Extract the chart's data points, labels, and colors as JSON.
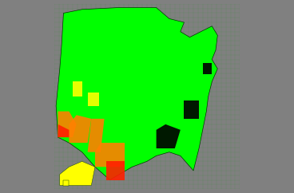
{
  "background_color": "#808080",
  "fig_width": 3.68,
  "fig_height": 2.42,
  "dpi": 100,
  "map_colors": {
    "high_white": "#00FF00",
    "med_high_white": "#80FF00",
    "medium_white": "#FFFF00",
    "low_white": "#FF8000",
    "very_low_white": "#FF4000",
    "black_majority": "#000000",
    "light_green": "#40FF00"
  },
  "alaska_color": "#FFFF00",
  "hawaii_color": "#FFFF00",
  "grid_color": "#00CC00",
  "title": ""
}
